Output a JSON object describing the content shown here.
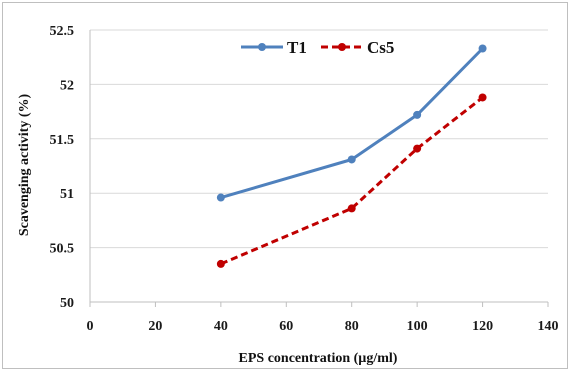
{
  "chart_data": {
    "type": "line",
    "xlabel": "EPS concentration  (µg/ml)",
    "ylabel": "Scavenging activity  (%)",
    "xlim": [
      0,
      140
    ],
    "ylim": [
      50,
      52.5
    ],
    "x_ticks": [
      "0",
      "20",
      "40",
      "60",
      "80",
      "100",
      "120",
      "140"
    ],
    "y_ticks": [
      "50",
      "50.5",
      "51",
      "51.5",
      "52",
      "52.5"
    ],
    "grid": "horizontal",
    "legend_position": "top",
    "series": [
      {
        "name": "T1",
        "color": "#4f81bd",
        "style": "solid",
        "x": [
          40,
          80,
          100,
          120
        ],
        "y": [
          50.96,
          51.31,
          51.72,
          52.33
        ]
      },
      {
        "name": "Cs5",
        "color": "#c00000",
        "style": "dashed",
        "x": [
          40,
          80,
          100,
          120
        ],
        "y": [
          50.35,
          50.86,
          51.41,
          51.88
        ]
      }
    ]
  }
}
